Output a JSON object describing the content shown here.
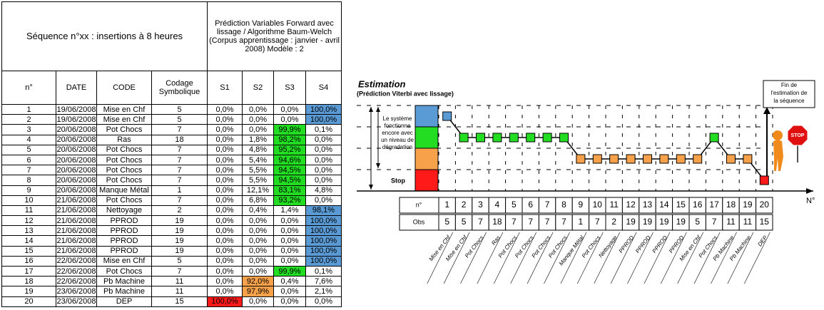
{
  "state_colors": [
    "#ff1a1a",
    "#f7a24a",
    "#22dd22",
    "#5b9bd5"
  ],
  "table": {
    "title": "Séquence n°xx : insertions à 8 heures",
    "prediction_header": "Prédiction Variables Forward avec lissage / Algorithme Baum-Welch (Corpus apprentissage : janvier - avril 2008) Modèle : 2",
    "columns": [
      "n°",
      "DATE",
      "CODE",
      "Codage Symbolique",
      "S1",
      "S2",
      "S3",
      "S4"
    ],
    "rows": [
      [
        "1",
        "19/06/2008",
        "Mise en Chf",
        "5",
        "0,0%",
        "0,0%",
        "0,0%",
        "100,0%"
      ],
      [
        "2",
        "19/06/2008",
        "Mise en Chf",
        "5",
        "0,0%",
        "0,0%",
        "0,0%",
        "100,0%"
      ],
      [
        "3",
        "20/06/2008",
        "Pot Chocs",
        "7",
        "0,0%",
        "0,0%",
        "99,9%",
        "0,1%"
      ],
      [
        "4",
        "20/06/2008",
        "Ras",
        "18",
        "0,0%",
        "1,8%",
        "98,2%",
        "0,0%"
      ],
      [
        "5",
        "20/06/2008",
        "Pot Chocs",
        "7",
        "0,0%",
        "4,8%",
        "95,2%",
        "0,0%"
      ],
      [
        "6",
        "20/06/2008",
        "Pot Chocs",
        "7",
        "0,0%",
        "5,4%",
        "94,6%",
        "0,0%"
      ],
      [
        "7",
        "20/06/2008",
        "Pot Chocs",
        "7",
        "0,0%",
        "5,5%",
        "94,5%",
        "0,0%"
      ],
      [
        "8",
        "20/06/2008",
        "Pot Chocs",
        "7",
        "0,0%",
        "5,5%",
        "94,5%",
        "0,0%"
      ],
      [
        "9",
        "20/06/2008",
        "Manque Métal",
        "1",
        "0,0%",
        "12,1%",
        "83,1%",
        "4,8%"
      ],
      [
        "10",
        "21/06/2008",
        "Pot Chocs",
        "7",
        "0,0%",
        "6,8%",
        "93,2%",
        "0,0%"
      ],
      [
        "11",
        "21/06/2008",
        "Nettoyage",
        "2",
        "0,0%",
        "0,4%",
        "1,4%",
        "98,1%"
      ],
      [
        "12",
        "21/06/2008",
        "PPROD",
        "19",
        "0,0%",
        "0,0%",
        "0,0%",
        "100,0%"
      ],
      [
        "13",
        "21/06/2008",
        "PPROD",
        "19",
        "0,0%",
        "0,0%",
        "0,0%",
        "100,0%"
      ],
      [
        "14",
        "21/06/2008",
        "PPROD",
        "19",
        "0,0%",
        "0,0%",
        "0,0%",
        "100,0%"
      ],
      [
        "15",
        "21/06/2008",
        "PPROD",
        "19",
        "0,0%",
        "0,0%",
        "0,0%",
        "100,0%"
      ],
      [
        "16",
        "22/06/2008",
        "Mise en Chf",
        "5",
        "0,0%",
        "0,0%",
        "0,0%",
        "100,0%"
      ],
      [
        "17",
        "22/06/2008",
        "Pot Chocs",
        "7",
        "0,0%",
        "0,0%",
        "99,9%",
        "0,1%"
      ],
      [
        "18",
        "22/06/2008",
        "Pb Machine",
        "11",
        "0,0%",
        "92,0%",
        "0,4%",
        "7,6%"
      ],
      [
        "19",
        "23/06/2008",
        "Pb Machine",
        "11",
        "0,0%",
        "97,9%",
        "0,0%",
        "2,1%"
      ],
      [
        "20",
        "23/06/2008",
        "DEP",
        "15",
        "100,0%",
        "0,0%",
        "0,0%",
        "0,0%"
      ]
    ]
  },
  "diagram": {
    "title": "Estimation",
    "subtitle": "(Prédiction Viterbi avec lissage)",
    "end_note": "Fin de l'estimation de la séquence",
    "degradation_label": "Le système fonctionne encore avec un niveau de dégradation",
    "stop_label": "Stop",
    "stop_sign": "STOP",
    "axis_label": "N°",
    "n_label": "n°",
    "obs_label": "Obs",
    "n": [
      1,
      2,
      3,
      4,
      5,
      6,
      7,
      8,
      9,
      10,
      11,
      12,
      13,
      14,
      15,
      16,
      17,
      18,
      19,
      20
    ],
    "obs": [
      5,
      5,
      7,
      18,
      7,
      7,
      7,
      7,
      1,
      7,
      2,
      19,
      19,
      19,
      19,
      5,
      7,
      11,
      11,
      15
    ],
    "codes": [
      "Mise en Chf",
      "Mise en Chf",
      "Pot Chocs",
      "Ras",
      "Pot Chocs",
      "Pot Chocs",
      "Pot Chocs",
      "Pot Chocs",
      "Manque Métal",
      "Pot Chocs",
      "Nettoyage",
      "PPROD",
      "PPROD",
      "PPROD",
      "PPROD",
      "Mise en Chf",
      "Pot Chocs",
      "Pb Machine",
      "Pb Machine",
      "DEP"
    ],
    "path": [
      3,
      2,
      2,
      2,
      2,
      2,
      2,
      2,
      1,
      1,
      1,
      1,
      1,
      1,
      1,
      1,
      2,
      1,
      1,
      0
    ]
  }
}
